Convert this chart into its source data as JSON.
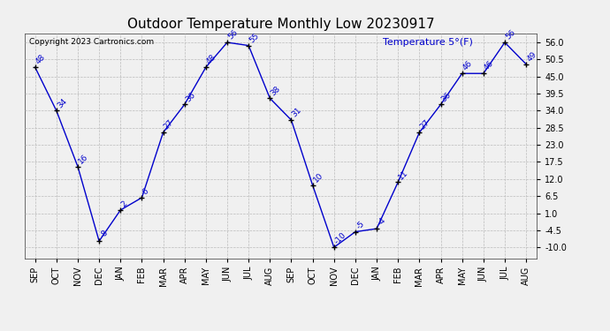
{
  "title": "Outdoor Temperature Monthly Low 20230917",
  "copyright": "Copyright 2023 Cartronics.com",
  "legend_label": "Temperature 5°(F)",
  "x_labels": [
    "SEP",
    "OCT",
    "NOV",
    "DEC",
    "JAN",
    "FEB",
    "MAR",
    "APR",
    "MAY",
    "JUN",
    "JUL",
    "AUG",
    "SEP",
    "OCT",
    "NOV",
    "DEC",
    "JAN",
    "FEB",
    "MAR",
    "APR",
    "MAY",
    "JUN",
    "JUL",
    "AUG"
  ],
  "y_values": [
    48,
    34,
    16,
    -8,
    2,
    6,
    27,
    36,
    48,
    56,
    55,
    38,
    31,
    10,
    -10,
    -5,
    -4,
    11,
    27,
    36,
    46,
    46,
    56,
    49
  ],
  "point_labels": [
    "48",
    "34",
    "16",
    "-8",
    "2",
    "6",
    "27",
    "36",
    "48",
    "56",
    "55",
    "38",
    "31",
    "10",
    "-10",
    "-5",
    "-4",
    "11",
    "27",
    "36",
    "46",
    "46",
    "56",
    "49"
  ],
  "y_ticks": [
    -10.0,
    -4.5,
    1.0,
    6.5,
    12.0,
    17.5,
    23.0,
    28.5,
    34.0,
    39.5,
    45.0,
    50.5,
    56.0
  ],
  "ylim": [
    -13.5,
    59
  ],
  "line_color": "#0000cc",
  "marker_color": "#000000",
  "title_color": "#000000",
  "legend_color": "#0000cc",
  "copyright_color": "#000000",
  "background_color": "#f0f0f0",
  "grid_color": "#bbbbbb",
  "title_fontsize": 11,
  "label_fontsize": 6.5,
  "tick_fontsize": 7,
  "copyright_fontsize": 6.5,
  "legend_fontsize": 8
}
